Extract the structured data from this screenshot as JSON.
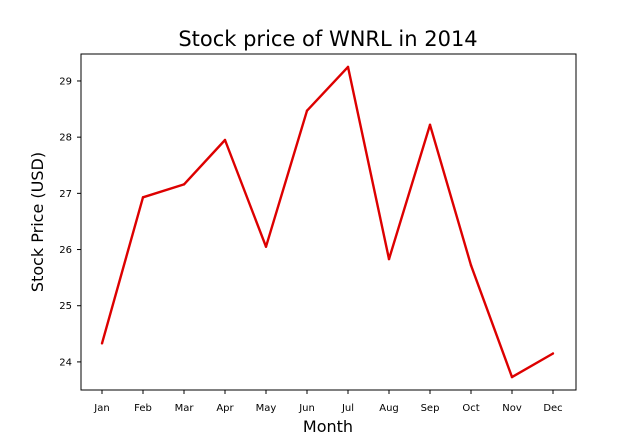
{
  "chart_data": {
    "type": "line",
    "title": "Stock price of WNRL in 2014",
    "xlabel": "Month",
    "ylabel": "Stock Price (USD)",
    "categories": [
      "Jan",
      "Feb",
      "Mar",
      "Apr",
      "May",
      "Jun",
      "Jul",
      "Aug",
      "Sep",
      "Oct",
      "Nov",
      "Dec"
    ],
    "series": [
      {
        "values": [
          24.33,
          26.93,
          27.16,
          27.95,
          26.05,
          28.47,
          29.25,
          25.83,
          28.22,
          25.72,
          23.73,
          24.15
        ],
        "color": "#dd0000"
      }
    ],
    "yticks": [
      24,
      25,
      26,
      27,
      28,
      29
    ],
    "ylim": [
      23.5,
      29.48
    ],
    "grid": false,
    "legend": "none"
  }
}
